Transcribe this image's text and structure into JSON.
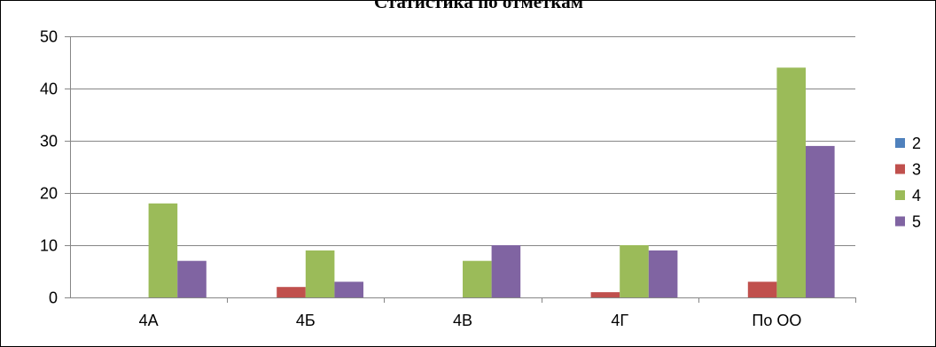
{
  "chart_data": {
    "type": "bar",
    "title": "Статистика по отметкам",
    "categories": [
      "4А",
      "4Б",
      "4В",
      "4Г",
      "По ОО"
    ],
    "series": [
      {
        "name": "2",
        "color": "#4F81BD",
        "values": [
          0,
          0,
          0,
          0,
          0
        ]
      },
      {
        "name": "3",
        "color": "#C0504D",
        "values": [
          0,
          2,
          0,
          1,
          3
        ]
      },
      {
        "name": "4",
        "color": "#9BBB59",
        "values": [
          18,
          9,
          7,
          10,
          44
        ]
      },
      {
        "name": "5",
        "color": "#8064A2",
        "values": [
          7,
          3,
          10,
          9,
          29
        ]
      }
    ],
    "ylim": [
      0,
      50
    ],
    "yticks": [
      0,
      10,
      20,
      30,
      40,
      50
    ],
    "grid": true,
    "legend_position": "right"
  }
}
